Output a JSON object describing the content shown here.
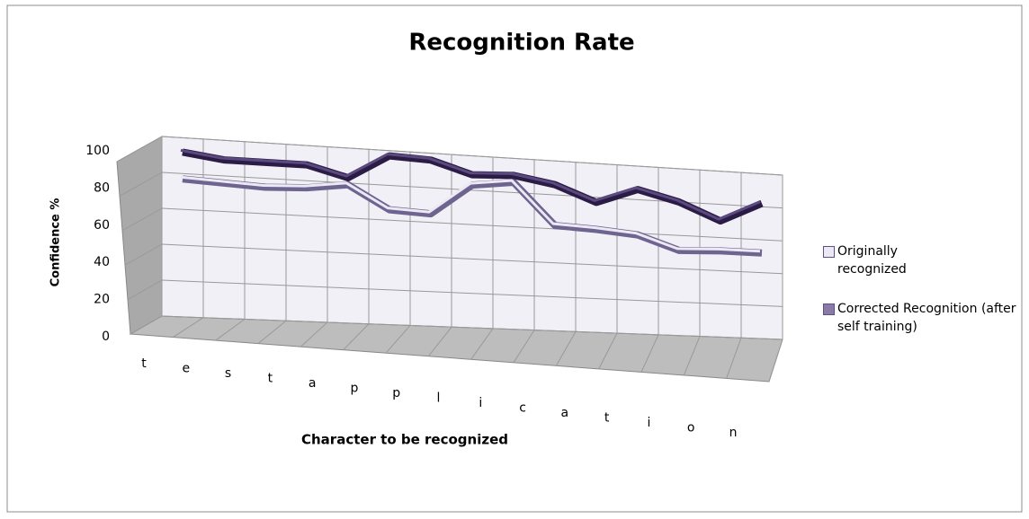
{
  "chart_data": {
    "type": "line3d",
    "title": "Recognition Rate",
    "x_label": "Character to be recognized",
    "y_label": "Confidence %",
    "categories": [
      "t",
      "e",
      "s",
      "t",
      "a",
      "p",
      "p",
      "l",
      "i",
      "c",
      "a",
      "t",
      "i",
      "o",
      "n"
    ],
    "series": [
      {
        "name": "Originally recognized",
        "color": "#ece9f4",
        "values": [
          77,
          76,
          75,
          76,
          79,
          66,
          65,
          83,
          86,
          62,
          61,
          59,
          51,
          52,
          52
        ]
      },
      {
        "name": "Corrected Recognition (after self training)",
        "color": "#3d2b5e",
        "values": [
          92,
          89,
          89,
          89,
          83,
          97,
          96,
          89,
          90,
          86,
          77,
          86,
          80,
          70,
          82
        ]
      }
    ],
    "ylim": [
      0,
      100
    ],
    "yticks": [
      0,
      20,
      40,
      60,
      80,
      100
    ],
    "grid": true,
    "legend": "right"
  }
}
